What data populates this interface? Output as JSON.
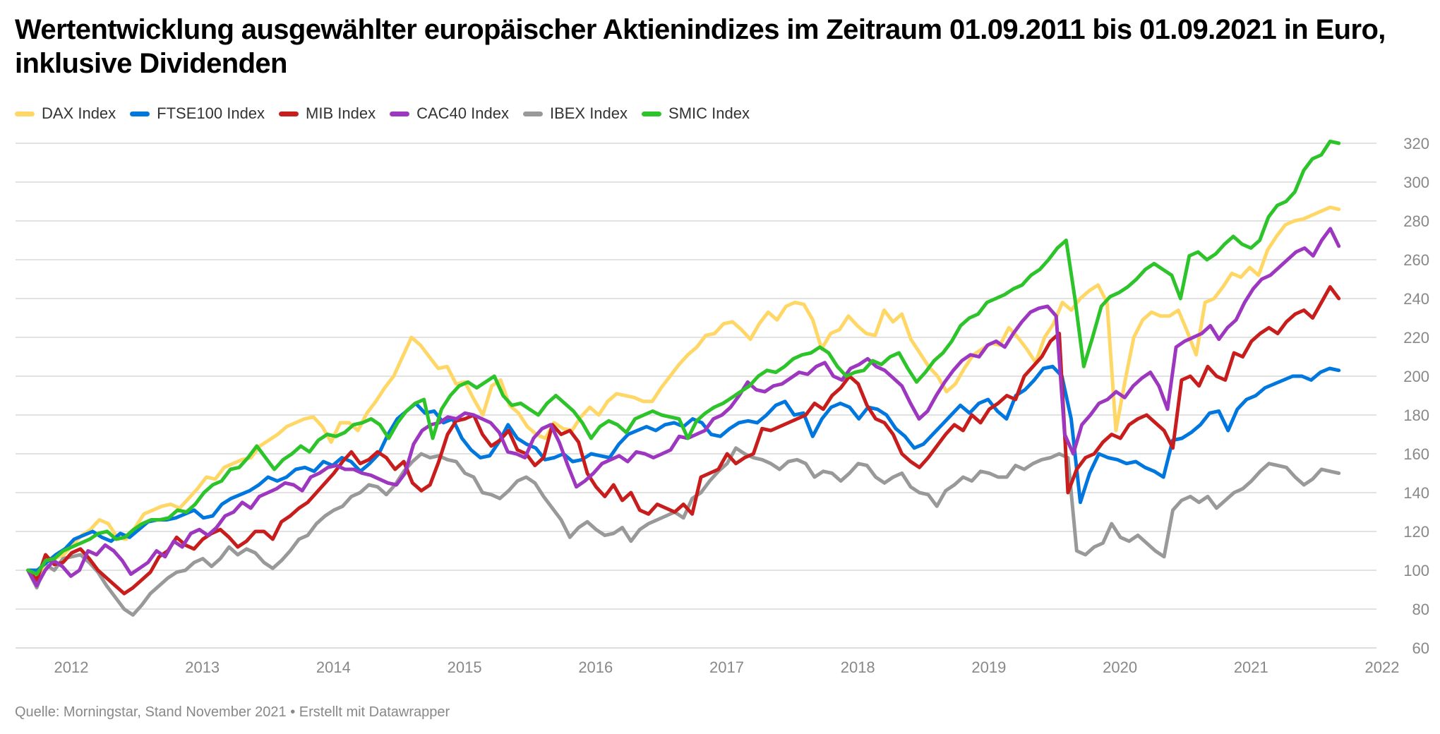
{
  "title": "Wertentwicklung ausgewählter europäischer Aktienindizes im Zeitraum 01.09.2011 bis 01.09.2021 in Euro, inklusive Dividenden",
  "footer": "Quelle: Morningstar, Stand November 2021 • Erstellt mit Datawrapper",
  "chart_data": {
    "type": "line",
    "title": "Wertentwicklung ausgewählter europäischer Aktienindizes im Zeitraum 01.09.2011 bis 01.09.2021 in Euro, inklusive Dividenden",
    "xlabel": "",
    "ylabel": "",
    "x_range": [
      2011.67,
      2022.0
    ],
    "x_ticks": [
      "2012",
      "2013",
      "2014",
      "2015",
      "2016",
      "2017",
      "2018",
      "2019",
      "2020",
      "2021",
      "2022"
    ],
    "x_tick_values": [
      2012,
      2013,
      2014,
      2015,
      2016,
      2017,
      2018,
      2019,
      2020,
      2021,
      2022
    ],
    "ylim": [
      60,
      320
    ],
    "y_ticks": [
      60,
      80,
      100,
      120,
      140,
      160,
      180,
      200,
      220,
      240,
      260,
      280,
      300,
      320
    ],
    "grid": true,
    "y_axis_position": "right",
    "legend_position": "top-left",
    "x_start": 2011.67,
    "x_step_years": 0.08333,
    "series": [
      {
        "name": "DAX Index",
        "color": "#ffd766",
        "values": [
          100,
          96,
          104,
          106,
          108,
          113,
          118,
          121,
          126,
          124,
          117,
          116,
          122,
          129,
          131,
          133,
          134,
          132,
          137,
          142,
          148,
          147,
          153,
          155,
          157,
          158,
          164,
          167,
          170,
          174,
          176,
          178,
          179,
          174,
          166,
          176,
          176,
          172,
          181,
          187,
          194,
          200,
          210,
          220,
          216,
          210,
          204,
          205,
          196,
          197,
          188,
          180,
          195,
          198,
          185,
          181,
          174,
          170,
          168,
          176,
          173,
          172,
          179,
          184,
          180,
          187,
          191,
          190,
          189,
          187,
          187,
          194,
          200,
          206,
          211,
          215,
          221,
          222,
          227,
          228,
          224,
          219,
          227,
          233,
          229,
          236,
          238,
          237,
          229,
          214,
          222,
          224,
          231,
          226,
          222,
          221,
          234,
          228,
          232,
          219,
          212,
          205,
          200,
          192,
          196,
          204,
          211,
          214,
          217,
          216,
          225,
          220,
          214,
          207,
          220,
          227,
          238,
          234,
          240,
          244,
          247,
          238,
          172,
          197,
          220,
          229,
          233,
          231,
          231,
          234,
          223,
          211,
          238,
          240,
          246,
          253,
          251,
          256,
          252,
          265,
          272,
          278,
          280,
          281,
          283,
          285,
          287,
          286
        ]
      },
      {
        "name": "FTSE100 Index",
        "color": "#0077de",
        "values": [
          100,
          100,
          104,
          108,
          111,
          116,
          118,
          120,
          117,
          115,
          119,
          117,
          121,
          125,
          126,
          126,
          127,
          129,
          131,
          127,
          128,
          134,
          137,
          139,
          141,
          144,
          148,
          146,
          148,
          152,
          153,
          151,
          156,
          154,
          158,
          156,
          151,
          155,
          160,
          170,
          178,
          182,
          186,
          181,
          182,
          176,
          178,
          168,
          162,
          158,
          159,
          166,
          175,
          168,
          165,
          163,
          157,
          158,
          160,
          156,
          157,
          160,
          159,
          158,
          165,
          170,
          172,
          174,
          172,
          175,
          176,
          174,
          178,
          176,
          170,
          169,
          173,
          176,
          177,
          176,
          180,
          185,
          187,
          180,
          181,
          169,
          178,
          184,
          186,
          184,
          178,
          184,
          183,
          180,
          173,
          169,
          163,
          165,
          170,
          175,
          180,
          185,
          181,
          186,
          188,
          182,
          178,
          190,
          193,
          198,
          204,
          205,
          200,
          178,
          135,
          150,
          160,
          158,
          157,
          155,
          156,
          153,
          151,
          148,
          167,
          168,
          171,
          175,
          181,
          182,
          172,
          183,
          188,
          190,
          194,
          196,
          198,
          200,
          200,
          198,
          202,
          204,
          203
        ]
      },
      {
        "name": "MIB Index",
        "color": "#c71e1d",
        "values": [
          100,
          95,
          108,
          103,
          104,
          109,
          111,
          106,
          100,
          96,
          92,
          88,
          91,
          95,
          99,
          107,
          110,
          117,
          113,
          111,
          116,
          119,
          121,
          117,
          112,
          115,
          120,
          120,
          116,
          125,
          128,
          132,
          135,
          140,
          145,
          150,
          156,
          161,
          155,
          157,
          161,
          158,
          152,
          156,
          145,
          141,
          144,
          156,
          170,
          177,
          178,
          180,
          170,
          164,
          167,
          172,
          162,
          160,
          154,
          158,
          175,
          170,
          172,
          166,
          150,
          143,
          138,
          144,
          136,
          140,
          131,
          129,
          134,
          132,
          130,
          134,
          129,
          148,
          150,
          152,
          160,
          155,
          158,
          160,
          173,
          172,
          174,
          176,
          178,
          180,
          186,
          183,
          190,
          194,
          200,
          196,
          185,
          178,
          176,
          170,
          160,
          156,
          153,
          158,
          164,
          170,
          175,
          172,
          180,
          176,
          183,
          186,
          190,
          188,
          200,
          205,
          210,
          218,
          222,
          140,
          152,
          158,
          160,
          166,
          170,
          168,
          175,
          178,
          180,
          176,
          172,
          163,
          198,
          200,
          195,
          205,
          200,
          198,
          212,
          210,
          218,
          222,
          225,
          222,
          228,
          232,
          234,
          230,
          238,
          246,
          240
        ]
      },
      {
        "name": "CAC40 Index",
        "color": "#9d37c0",
        "values": [
          100,
          92,
          100,
          105,
          102,
          97,
          100,
          110,
          108,
          113,
          110,
          105,
          98,
          101,
          104,
          110,
          107,
          115,
          112,
          119,
          121,
          118,
          122,
          128,
          130,
          135,
          132,
          138,
          140,
          142,
          145,
          144,
          141,
          148,
          150,
          153,
          154,
          152,
          152,
          150,
          149,
          147,
          145,
          144,
          150,
          165,
          172,
          175,
          176,
          179,
          178,
          181,
          180,
          178,
          176,
          171,
          161,
          160,
          158,
          168,
          173,
          175,
          166,
          154,
          143,
          146,
          150,
          155,
          157,
          159,
          156,
          161,
          160,
          158,
          160,
          162,
          169,
          168,
          170,
          172,
          178,
          180,
          184,
          190,
          197,
          193,
          192,
          195,
          196,
          199,
          202,
          201,
          205,
          207,
          200,
          198,
          204,
          206,
          209,
          205,
          203,
          199,
          195,
          186,
          178,
          182,
          190,
          197,
          203,
          208,
          211,
          210,
          216,
          218,
          215,
          222,
          228,
          233,
          235,
          236,
          231,
          170,
          160,
          175,
          180,
          186,
          188,
          192,
          189,
          195,
          199,
          202,
          195,
          183,
          215,
          218,
          220,
          222,
          226,
          219,
          225,
          229,
          238,
          245,
          250,
          252,
          256,
          260,
          264,
          266,
          262,
          270,
          276,
          267
        ]
      },
      {
        "name": "IBEX Index",
        "color": "#999999",
        "values": [
          100,
          91,
          103,
          100,
          106,
          107,
          108,
          104,
          99,
          92,
          86,
          80,
          77,
          82,
          88,
          92,
          96,
          99,
          100,
          104,
          106,
          102,
          106,
          112,
          108,
          111,
          109,
          104,
          101,
          105,
          110,
          116,
          118,
          124,
          128,
          131,
          133,
          138,
          140,
          144,
          143,
          139,
          144,
          151,
          156,
          160,
          158,
          159,
          157,
          156,
          150,
          148,
          140,
          139,
          137,
          141,
          146,
          148,
          145,
          138,
          132,
          126,
          117,
          122,
          125,
          121,
          118,
          119,
          122,
          115,
          121,
          124,
          126,
          128,
          130,
          127,
          137,
          140,
          146,
          151,
          155,
          163,
          160,
          158,
          157,
          155,
          152,
          156,
          157,
          155,
          148,
          151,
          150,
          146,
          150,
          155,
          154,
          148,
          145,
          148,
          150,
          143,
          140,
          139,
          133,
          141,
          144,
          148,
          146,
          151,
          150,
          148,
          148,
          154,
          152,
          155,
          157,
          158,
          160,
          158,
          110,
          108,
          112,
          114,
          124,
          117,
          115,
          118,
          114,
          110,
          107,
          131,
          136,
          138,
          135,
          138,
          132,
          136,
          140,
          142,
          146,
          151,
          155,
          154,
          153,
          148,
          144,
          147,
          152,
          151,
          150
        ]
      },
      {
        "name": "SMIC Index",
        "color": "#2dc32a",
        "values": [
          100,
          98,
          105,
          106,
          110,
          112,
          114,
          116,
          119,
          120,
          116,
          117,
          121,
          124,
          126,
          126,
          127,
          131,
          130,
          134,
          140,
          144,
          146,
          152,
          153,
          158,
          164,
          158,
          152,
          157,
          160,
          164,
          161,
          167,
          170,
          169,
          171,
          175,
          176,
          178,
          175,
          168,
          176,
          182,
          186,
          188,
          168,
          183,
          190,
          195,
          197,
          194,
          197,
          200,
          190,
          185,
          186,
          183,
          180,
          186,
          190,
          186,
          182,
          176,
          168,
          174,
          177,
          175,
          171,
          178,
          180,
          182,
          180,
          179,
          178,
          168,
          177,
          181,
          184,
          186,
          189,
          192,
          195,
          200,
          203,
          202,
          205,
          209,
          211,
          212,
          215,
          212,
          205,
          200,
          202,
          203,
          208,
          206,
          210,
          212,
          204,
          197,
          202,
          208,
          212,
          218,
          226,
          230,
          232,
          238,
          240,
          242,
          245,
          247,
          252,
          255,
          260,
          266,
          270,
          240,
          205,
          220,
          236,
          241,
          243,
          246,
          250,
          255,
          258,
          255,
          252,
          240,
          262,
          264,
          260,
          263,
          268,
          272,
          268,
          266,
          270,
          282,
          288,
          290,
          295,
          306,
          312,
          314,
          321,
          320
        ]
      }
    ]
  }
}
